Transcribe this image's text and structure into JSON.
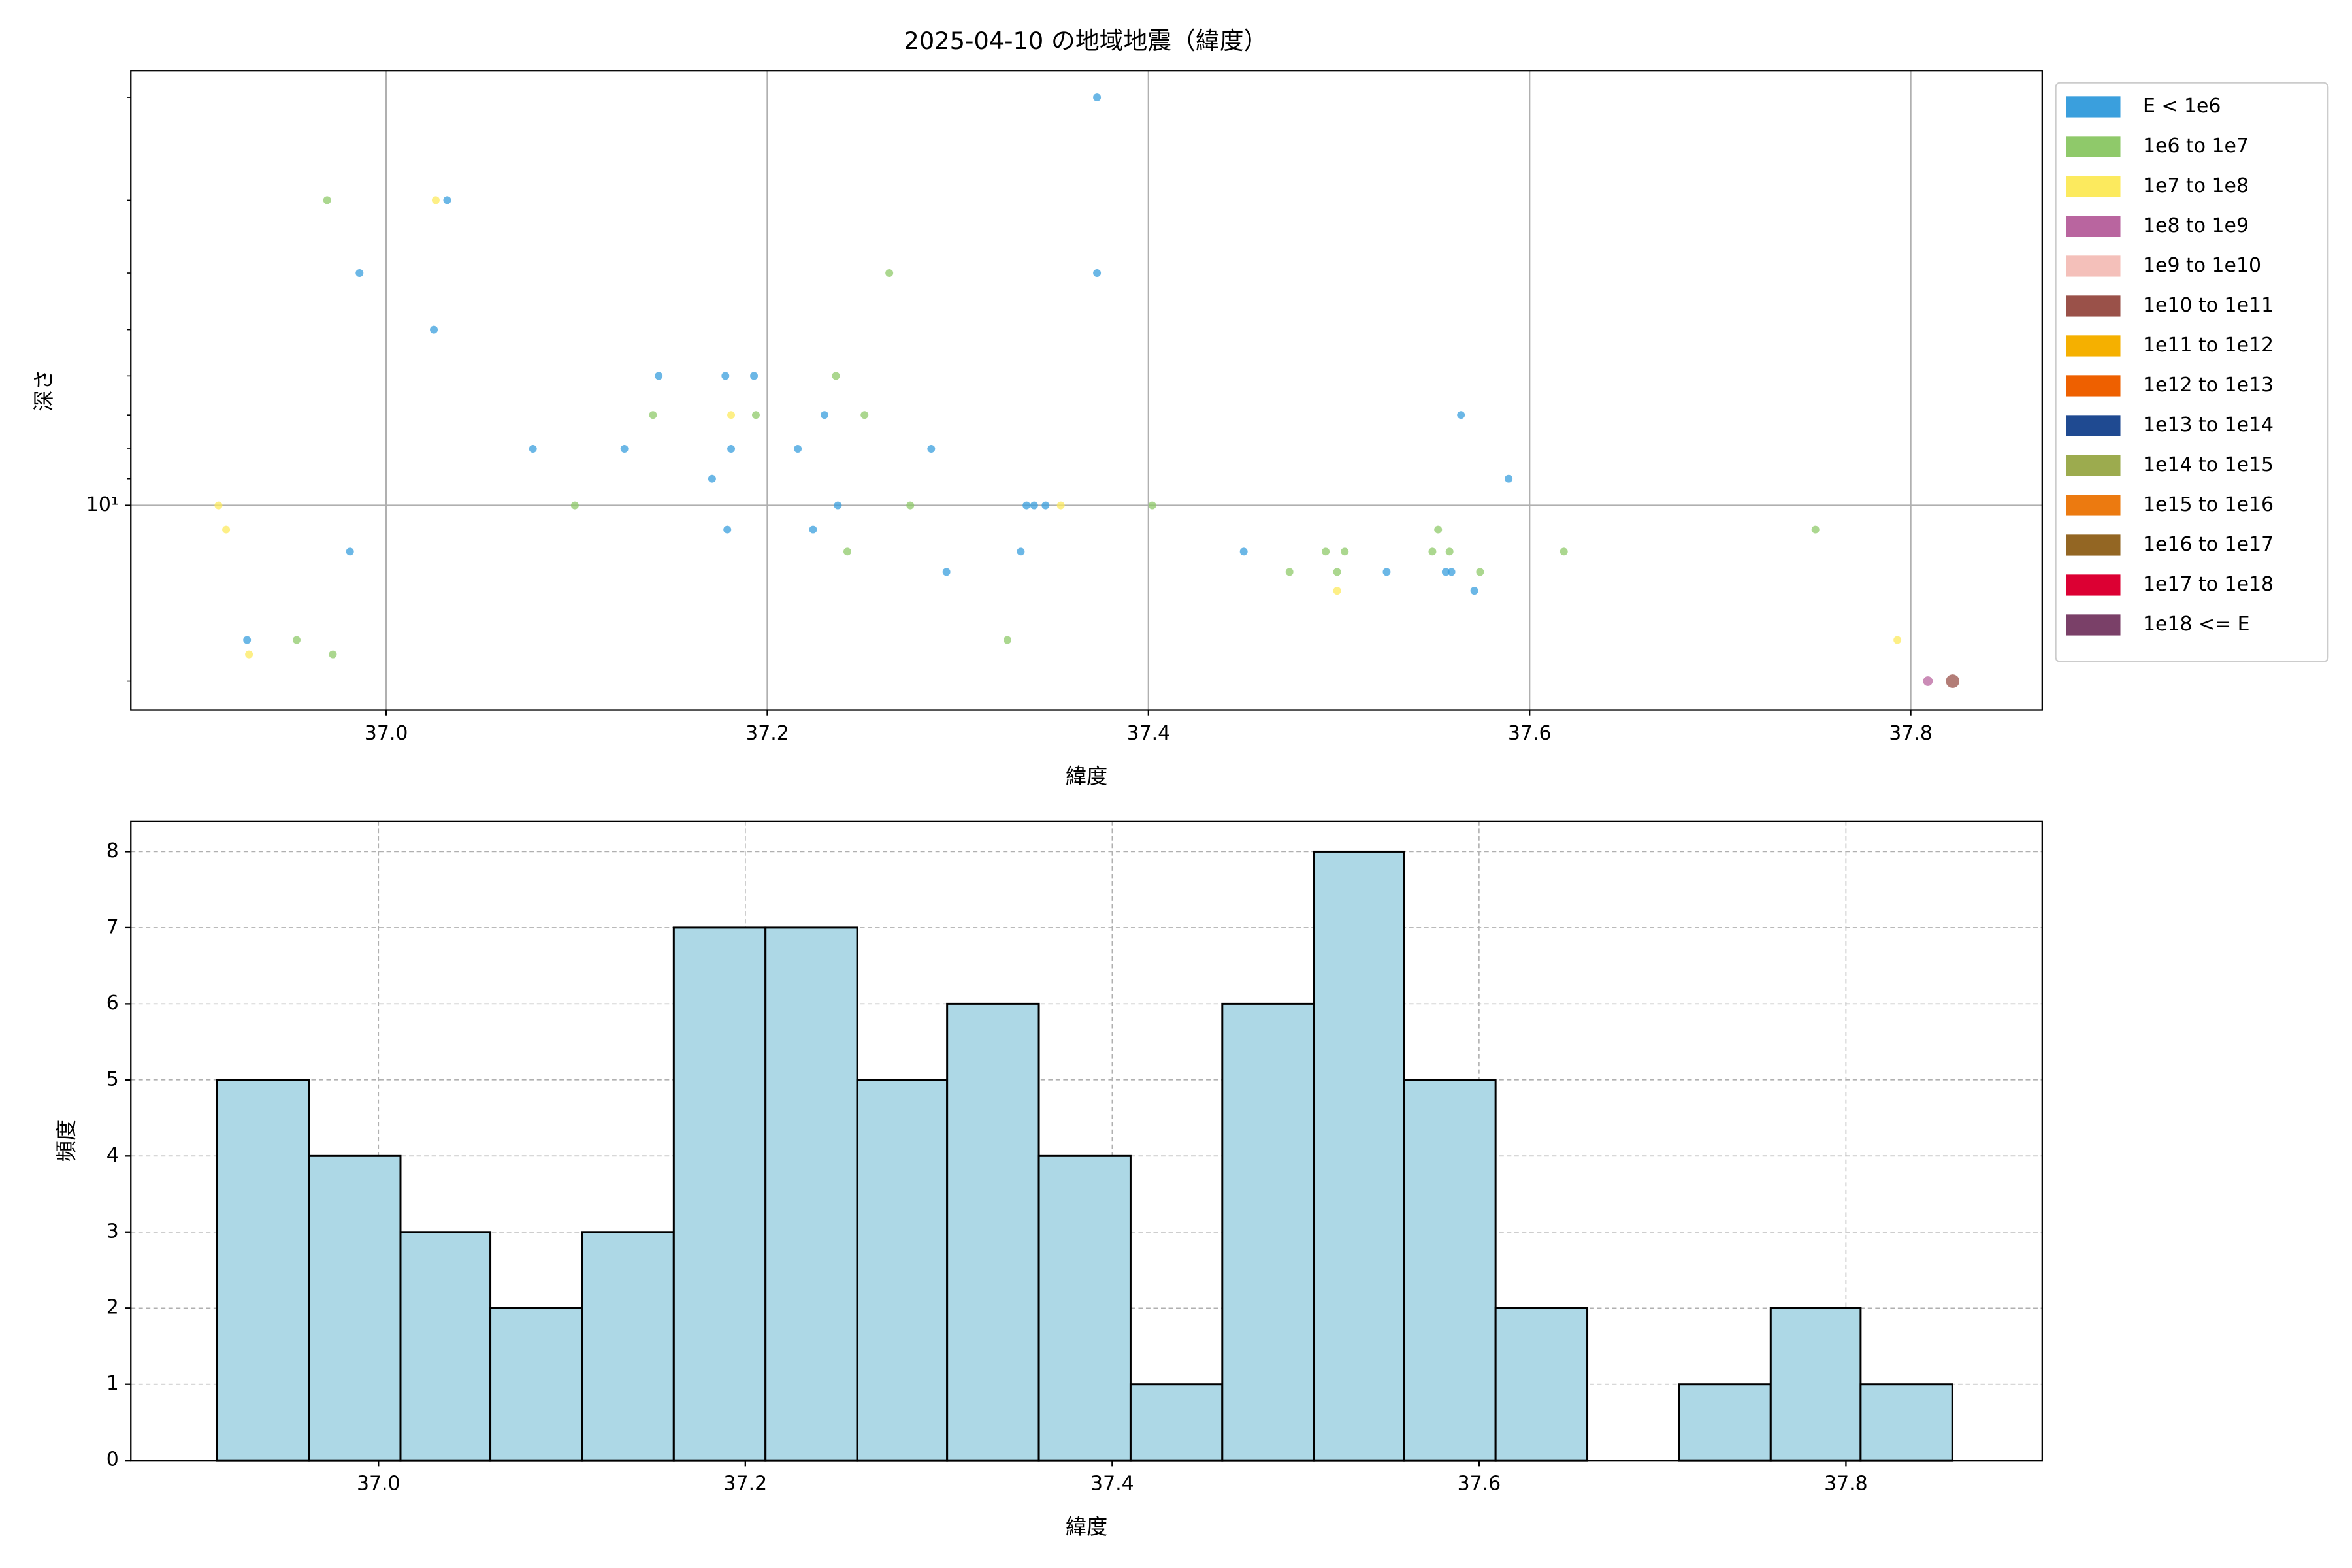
{
  "chart_data": [
    {
      "type": "scatter",
      "title": "2025-04-10 の地域地震（緯度）",
      "xlabel": "緯度",
      "ylabel": "深さ",
      "xlim": [
        36.866,
        37.869
      ],
      "ylim": [
        22.4,
        1.8
      ],
      "log_y": true,
      "xticks": [
        {
          "value": 37,
          "label": "37.0"
        },
        {
          "value": 37.2,
          "label": "37.2"
        },
        {
          "value": 37.4,
          "label": "37.4"
        },
        {
          "value": 37.6,
          "label": "37.6"
        },
        {
          "value": 37.8,
          "label": "37.8"
        }
      ],
      "yticks": [
        {
          "value": 10,
          "label": "10¹"
        }
      ],
      "yminor_ticks": [
        2,
        3,
        4,
        5,
        6,
        7,
        8,
        9,
        20
      ],
      "grid": true,
      "legend": "outside upper right",
      "series": [
        {
          "name": "E < 1e6",
          "color": "#3a9fdd",
          "marker_size": 2.6,
          "x": [
            37.373,
            37.032,
            36.986,
            37.373,
            37.025,
            37.143,
            37.178,
            37.193,
            37.23,
            37.564,
            37.077,
            37.125,
            37.181,
            37.216,
            37.286,
            37.171,
            37.589,
            37.237,
            37.336,
            37.34,
            37.346,
            37.179,
            37.224,
            36.981,
            37.333,
            37.45,
            37.294,
            37.525,
            37.556,
            37.559,
            37.571,
            36.927
          ],
          "values": [
            2,
            3,
            4,
            4,
            5,
            6,
            6,
            6,
            7,
            7,
            8,
            8,
            8,
            8,
            8,
            9,
            9,
            10,
            10,
            10,
            10,
            11,
            11,
            12,
            12,
            12,
            13,
            13,
            13,
            13,
            14,
            17
          ]
        },
        {
          "name": "1e6 to 1e7",
          "color": "#8fc96a",
          "marker_size": 2.6,
          "x": [
            36.969,
            37.264,
            37.236,
            37.14,
            37.194,
            37.251,
            37.099,
            37.275,
            37.402,
            37.552,
            37.75,
            37.242,
            37.493,
            37.503,
            37.549,
            37.558,
            37.618,
            37.474,
            37.499,
            37.574,
            36.953,
            37.326,
            36.972
          ],
          "values": [
            3,
            4,
            6,
            7,
            7,
            7,
            10,
            10,
            10,
            11,
            11,
            12,
            12,
            12,
            12,
            12,
            12,
            13,
            13,
            13,
            17,
            17,
            18
          ]
        },
        {
          "name": "1e7 to 1e8",
          "color": "#fcea5e",
          "marker_size": 2.6,
          "x": [
            37.026,
            37.181,
            36.912,
            37.354,
            36.916,
            37.499,
            37.793,
            36.928
          ],
          "values": [
            3,
            7,
            10,
            10,
            11,
            14,
            17,
            18
          ]
        },
        {
          "name": "1e8 to 1e9",
          "color": "#b9659f",
          "marker_size": 3.2,
          "x": [
            37.809
          ],
          "values": [
            20
          ]
        },
        {
          "name": "1e9 to 1e10",
          "color": "#f4c0ba",
          "x": [],
          "values": []
        },
        {
          "name": "1e10 to 1e11",
          "color": "#9a5149",
          "marker_size": 4.5,
          "x": [
            37.822
          ],
          "values": [
            20
          ]
        },
        {
          "name": "1e11 to 1e12",
          "color": "#f5b000",
          "x": [],
          "values": []
        },
        {
          "name": "1e12 to 1e13",
          "color": "#ee6000",
          "x": [],
          "values": []
        },
        {
          "name": "1e13 to 1e14",
          "color": "#1f4a91",
          "x": [],
          "values": []
        },
        {
          "name": "1e14 to 1e15",
          "color": "#9cab4e",
          "x": [],
          "values": []
        },
        {
          "name": "1e15 to 1e16",
          "color": "#ec7a10",
          "x": [],
          "values": []
        },
        {
          "name": "1e16 to 1e17",
          "color": "#936623",
          "x": [],
          "values": []
        },
        {
          "name": "1e17 to 1e18",
          "color": "#dc0033",
          "x": [],
          "values": []
        },
        {
          "name": "1e18 <= E",
          "color": "#7a4068",
          "x": [],
          "values": []
        }
      ]
    },
    {
      "type": "histogram",
      "xlabel": "緯度",
      "ylabel": "頻度",
      "bins": [
        36.912,
        36.962,
        37.012,
        37.061,
        37.111,
        37.161,
        37.211,
        37.261,
        37.31,
        37.36,
        37.41,
        37.46,
        37.51,
        37.559,
        37.609,
        37.659,
        37.709,
        37.759,
        37.808,
        37.858
      ],
      "values": [
        5,
        4,
        3,
        2,
        3,
        7,
        7,
        5,
        6,
        4,
        1,
        6,
        8,
        5,
        2,
        0,
        1,
        2,
        1
      ],
      "color": "#add8e6",
      "edgecolor": "#000000",
      "xlim": [
        36.865,
        37.907
      ],
      "ylim": [
        0,
        8.4
      ],
      "xticks": [
        {
          "value": 37,
          "label": "37.0"
        },
        {
          "value": 37.2,
          "label": "37.2"
        },
        {
          "value": 37.4,
          "label": "37.4"
        },
        {
          "value": 37.6,
          "label": "37.6"
        },
        {
          "value": 37.8,
          "label": "37.8"
        }
      ],
      "yticks": [
        0,
        1,
        2,
        3,
        4,
        5,
        6,
        7,
        8
      ],
      "grid": true,
      "grid_style": "dashed"
    }
  ]
}
